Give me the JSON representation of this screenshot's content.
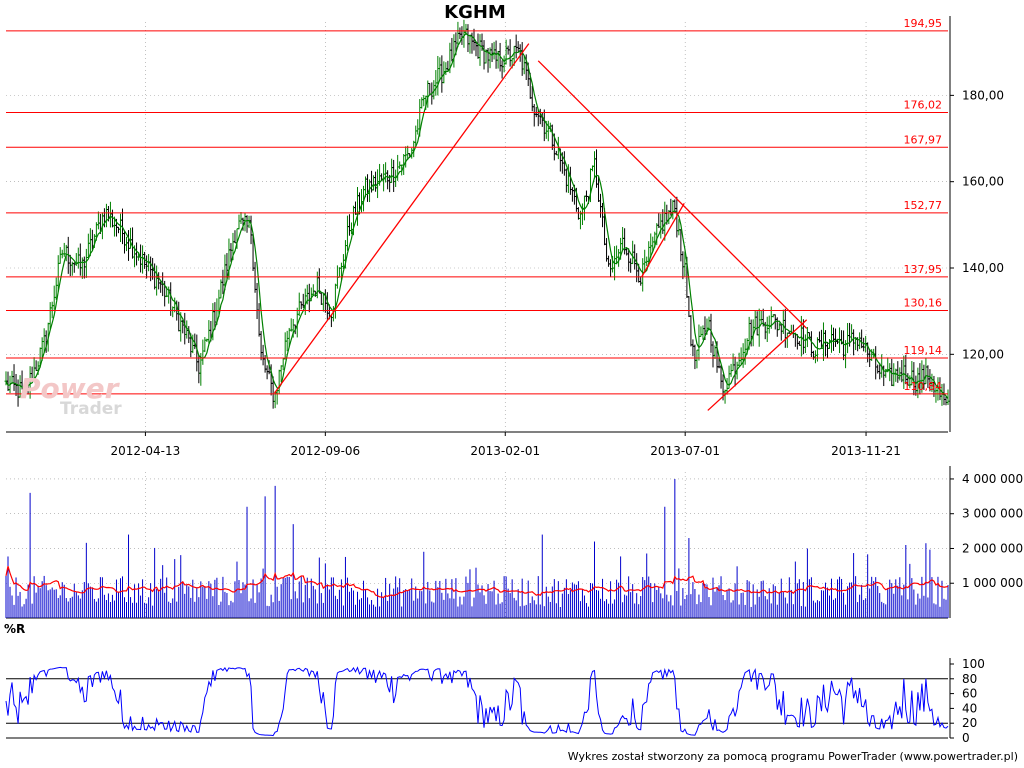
{
  "app": {
    "title": "KGHM",
    "footer": "Wykres został stworzony za pomocą programu PowerTrader (www.powertrader.pl)",
    "watermark": {
      "line1": "Power",
      "line2": "Trader"
    }
  },
  "colors": {
    "price_up": "#008000",
    "price_down": "#000000",
    "levels": "#ff0000",
    "trendlines": "#ff0000",
    "volume_bars": "#0000cc",
    "volume_ma": "#ff0000",
    "wpr_line": "#0000ff",
    "axis": "#000000",
    "grid": "#999999"
  },
  "chart_data": [
    {
      "type": "line",
      "subtype": "ohlc_bars",
      "title": "KGHM",
      "x_ticks": [
        "2012-04-13",
        "2012-09-06",
        "2013-02-01",
        "2013-07-01",
        "2013-11-21"
      ],
      "y_ticks": [
        "120,00",
        "140,00",
        "160,00",
        "180,00"
      ],
      "ylim": [
        102,
        197
      ],
      "grid": true,
      "levels": [
        {
          "value": 194.95,
          "label": "194,95"
        },
        {
          "value": 176.02,
          "label": "176,02"
        },
        {
          "value": 167.97,
          "label": "167,97"
        },
        {
          "value": 152.77,
          "label": "152,77"
        },
        {
          "value": 137.95,
          "label": "137,95"
        },
        {
          "value": 130.16,
          "label": "130,16"
        },
        {
          "value": 119.14,
          "label": "119,14"
        },
        {
          "value": 110.84,
          "label": "110,84"
        }
      ],
      "price_anchors": [
        [
          0,
          113
        ],
        [
          0.02,
          111
        ],
        [
          0.04,
          122
        ],
        [
          0.06,
          144
        ],
        [
          0.08,
          140
        ],
        [
          0.105,
          153
        ],
        [
          0.125,
          148
        ],
        [
          0.15,
          140
        ],
        [
          0.165,
          136
        ],
        [
          0.19,
          125
        ],
        [
          0.205,
          117
        ],
        [
          0.22,
          128
        ],
        [
          0.245,
          150
        ],
        [
          0.26,
          149
        ],
        [
          0.27,
          120
        ],
        [
          0.285,
          110
        ],
        [
          0.3,
          126
        ],
        [
          0.33,
          136
        ],
        [
          0.345,
          130
        ],
        [
          0.365,
          150
        ],
        [
          0.38,
          158
        ],
        [
          0.41,
          162
        ],
        [
          0.43,
          167
        ],
        [
          0.445,
          180
        ],
        [
          0.465,
          186
        ],
        [
          0.485,
          194
        ],
        [
          0.5,
          191
        ],
        [
          0.52,
          188
        ],
        [
          0.545,
          190
        ],
        [
          0.56,
          178
        ],
        [
          0.58,
          170
        ],
        [
          0.6,
          158
        ],
        [
          0.61,
          152
        ],
        [
          0.625,
          164
        ],
        [
          0.64,
          138
        ],
        [
          0.655,
          146
        ],
        [
          0.675,
          138
        ],
        [
          0.695,
          150
        ],
        [
          0.71,
          154
        ],
        [
          0.72,
          140
        ],
        [
          0.73,
          118
        ],
        [
          0.745,
          128
        ],
        [
          0.76,
          112
        ],
        [
          0.775,
          118
        ],
        [
          0.79,
          126
        ],
        [
          0.81,
          128
        ],
        [
          0.83,
          126
        ],
        [
          0.845,
          124
        ],
        [
          0.86,
          121
        ],
        [
          0.875,
          124
        ],
        [
          0.89,
          122
        ],
        [
          0.905,
          124
        ],
        [
          0.92,
          118
        ],
        [
          0.935,
          114
        ],
        [
          0.95,
          116
        ],
        [
          0.965,
          114
        ],
        [
          0.98,
          115
        ],
        [
          1.0,
          107
        ]
      ],
      "trendlines": [
        {
          "from": [
            0.285,
            111
          ],
          "to": [
            0.555,
            192
          ]
        },
        {
          "from": [
            0.565,
            188
          ],
          "to": [
            0.85,
            126
          ]
        },
        {
          "from": [
            0.675,
            138
          ],
          "to": [
            0.72,
            155
          ]
        },
        {
          "from": [
            0.745,
            107
          ],
          "to": [
            0.85,
            128
          ]
        }
      ]
    },
    {
      "type": "bar",
      "subtype": "volume",
      "y_ticks": [
        "1 000 000",
        "2 000 000",
        "3 000 000",
        "4 000 000"
      ],
      "ylim": [
        0,
        4200000
      ],
      "typical_volume": 900000,
      "spikes": [
        [
          0.025,
          3600000
        ],
        [
          0.13,
          2400000
        ],
        [
          0.255,
          3200000
        ],
        [
          0.275,
          3500000
        ],
        [
          0.285,
          3800000
        ],
        [
          0.305,
          2700000
        ],
        [
          0.57,
          2400000
        ],
        [
          0.625,
          2200000
        ],
        [
          0.7,
          3200000
        ],
        [
          0.71,
          4000000
        ],
        [
          0.725,
          2300000
        ],
        [
          0.85,
          2000000
        ],
        [
          0.955,
          2100000
        ]
      ],
      "moving_average": {
        "name": "",
        "level": 900000
      }
    },
    {
      "type": "line",
      "subtype": "williams_r",
      "title": "%R",
      "y_ticks": [
        "0",
        "20",
        "40",
        "60",
        "80",
        "100"
      ],
      "ylim": [
        0,
        100
      ],
      "bands": [
        20,
        80
      ]
    }
  ]
}
